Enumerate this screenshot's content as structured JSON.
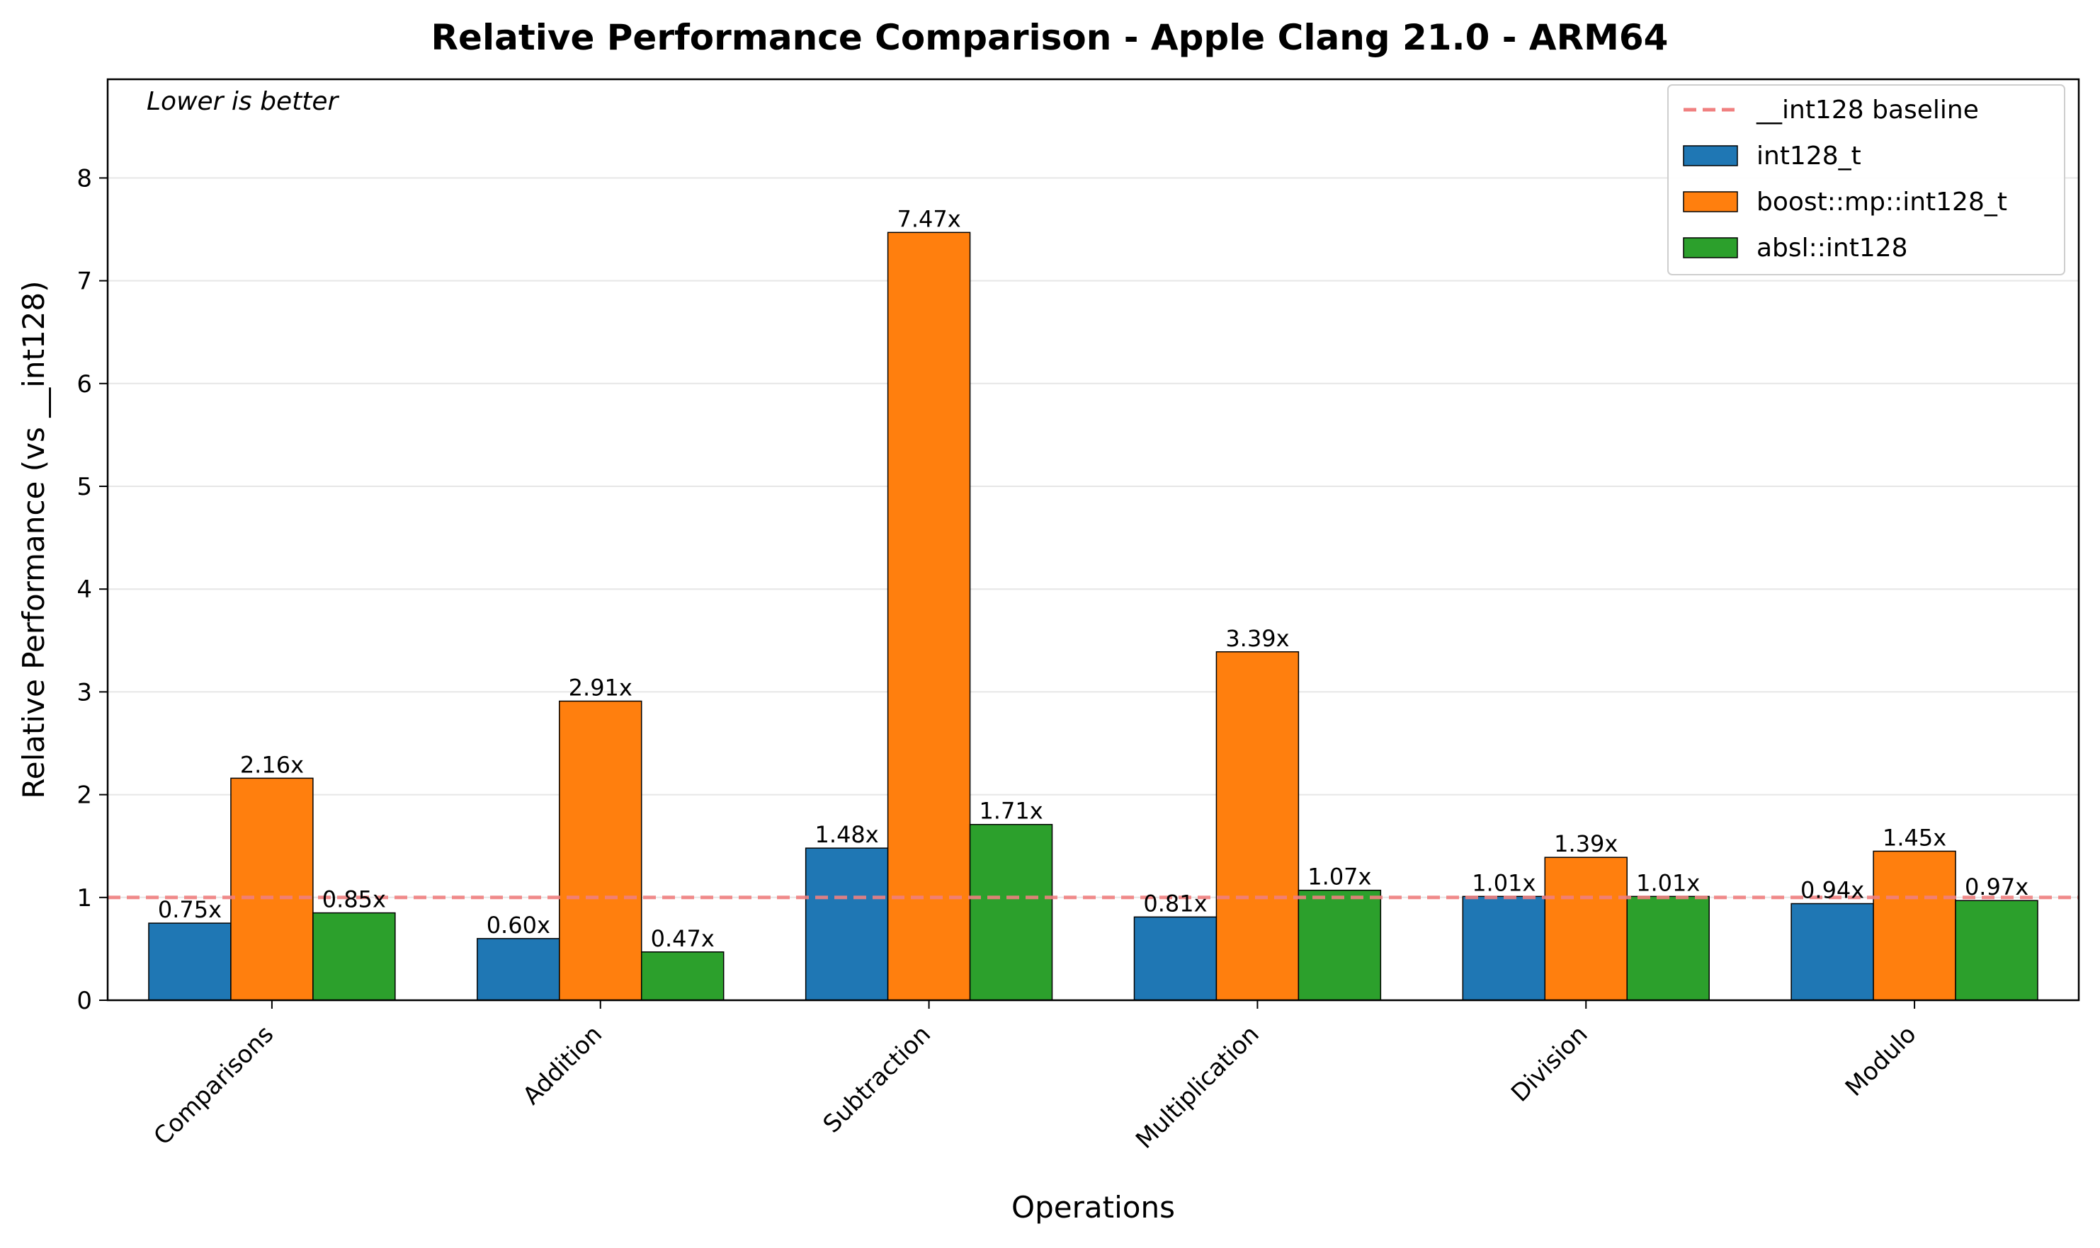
{
  "chart_data": {
    "type": "bar",
    "title": "Relative Performance Comparison - Apple Clang 21.0 - ARM64",
    "xlabel": "Operations",
    "ylabel": "Relative Performance (vs __int128)",
    "annotation": "Lower is better",
    "categories": [
      "Comparisons",
      "Addition",
      "Subtraction",
      "Multiplication",
      "Division",
      "Modulo"
    ],
    "ylim": [
      0,
      8.96
    ],
    "yticks": [
      0,
      1,
      2,
      3,
      4,
      5,
      6,
      7,
      8
    ],
    "grid": "horizontal",
    "legend_position": "top-right",
    "baseline": {
      "name": "__int128 baseline",
      "value": 1.0,
      "color": "#f08080",
      "style": "dashed"
    },
    "series": [
      {
        "name": "int128_t",
        "color": "#1f77b4",
        "values": [
          0.75,
          0.6,
          1.48,
          0.81,
          1.01,
          0.94
        ],
        "labels": [
          "0.75x",
          "0.60x",
          "1.48x",
          "0.81x",
          "1.01x",
          "0.94x"
        ]
      },
      {
        "name": "boost::mp::int128_t",
        "color": "#ff7f0e",
        "values": [
          2.16,
          2.91,
          7.47,
          3.39,
          1.39,
          1.45
        ],
        "labels": [
          "2.16x",
          "2.91x",
          "7.47x",
          "3.39x",
          "1.39x",
          "1.45x"
        ]
      },
      {
        "name": "absl::int128",
        "color": "#2ca02c",
        "values": [
          0.85,
          0.47,
          1.71,
          1.07,
          1.01,
          0.97
        ],
        "labels": [
          "0.85x",
          "0.47x",
          "1.71x",
          "1.07x",
          "1.01x",
          "0.97x"
        ]
      }
    ]
  }
}
